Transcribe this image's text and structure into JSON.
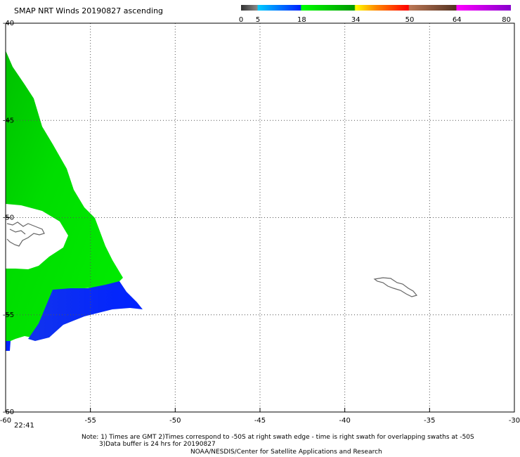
{
  "chart_data": {
    "type": "heatmap",
    "title": "SMAP NRT Winds 20190827 ascending",
    "x_ticks": [
      "-60",
      "-55",
      "-50",
      "-45",
      "-40",
      "-35",
      "-30"
    ],
    "y_ticks": [
      "-40",
      "-45",
      "-50",
      "-55",
      "-60"
    ],
    "xlim": [
      -60,
      -30
    ],
    "ylim": [
      -60,
      -40
    ],
    "grid": true,
    "colorbar": {
      "labels": [
        "0",
        "5",
        "18",
        "34",
        "50",
        "64",
        "80"
      ],
      "segments": [
        {
          "from": 0,
          "to": 5,
          "color": "#555555"
        },
        {
          "from": 5,
          "to": 18,
          "color": "#0099ff"
        },
        {
          "from": 18,
          "to": 34,
          "color": "#00cc00"
        },
        {
          "from": 34,
          "to": 50,
          "color": "#ff4400"
        },
        {
          "from": 50,
          "to": 64,
          "color": "#996644"
        },
        {
          "from": 64,
          "to": 80,
          "color": "#cc00cc"
        }
      ]
    },
    "swath_time": "22:41"
  },
  "notes": {
    "line1": "Note: 1) Times are GMT 2)Times correspond to -50S at right swath edge - time is right swath for overlapping swaths at -50S",
    "line2": "3)Data buffer is 24 hrs for 20190827",
    "line3": "NOAA/NESDIS/Center for Satellite Applications and Research"
  }
}
